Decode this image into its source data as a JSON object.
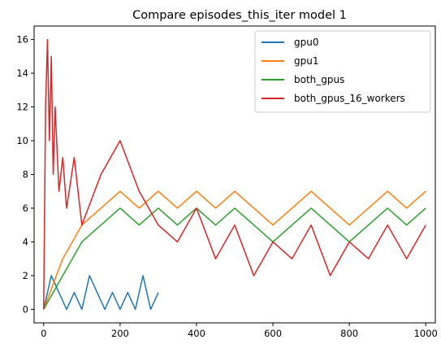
{
  "chart_data": {
    "type": "line",
    "title": "Compare episodes_this_iter model 1",
    "xlabel": "",
    "ylabel": "",
    "xlim": [
      -25,
      1025
    ],
    "ylim": [
      -0.8,
      16.8
    ],
    "xticks": [
      0,
      200,
      400,
      600,
      800,
      1000
    ],
    "yticks": [
      0,
      2,
      4,
      6,
      8,
      10,
      12,
      14,
      16
    ],
    "grid": false,
    "legend_placement": "top-right",
    "series": [
      {
        "name": "gpu0",
        "color": "#1f77b4",
        "x": [
          0,
          20,
          40,
          60,
          80,
          100,
          120,
          140,
          160,
          180,
          200,
          220,
          240,
          260,
          280,
          300
        ],
        "y": [
          0,
          2,
          1,
          0,
          1,
          0,
          2,
          1,
          0,
          1,
          0,
          1,
          0,
          2,
          0,
          1
        ]
      },
      {
        "name": "gpu1",
        "color": "#ff7f0e",
        "x": [
          0,
          50,
          100,
          150,
          200,
          250,
          300,
          350,
          400,
          450,
          500,
          550,
          600,
          650,
          700,
          750,
          800,
          850,
          900,
          950,
          1000
        ],
        "y": [
          0,
          3,
          5,
          6,
          7,
          6,
          7,
          6,
          7,
          6,
          7,
          6,
          5,
          6,
          7,
          6,
          5,
          6,
          7,
          6,
          7
        ]
      },
      {
        "name": "both_gpus",
        "color": "#2ca02c",
        "x": [
          0,
          50,
          100,
          150,
          200,
          250,
          300,
          350,
          400,
          450,
          500,
          550,
          600,
          650,
          700,
          750,
          800,
          850,
          900,
          950,
          1000
        ],
        "y": [
          0,
          2,
          4,
          5,
          6,
          5,
          6,
          5,
          6,
          5,
          6,
          5,
          4,
          5,
          6,
          5,
          4,
          5,
          6,
          5,
          6
        ]
      },
      {
        "name": "both_gpus_16_workers",
        "color": "#d62728",
        "x": [
          0,
          5,
          10,
          15,
          20,
          25,
          30,
          40,
          50,
          60,
          80,
          100,
          150,
          200,
          250,
          300,
          350,
          400,
          450,
          500,
          550,
          600,
          650,
          700,
          750,
          800,
          850,
          900,
          950,
          1000
        ],
        "y": [
          0,
          12,
          16,
          10,
          15,
          8,
          12,
          7,
          9,
          6,
          9,
          5,
          8,
          10,
          7,
          5,
          4,
          6,
          3,
          5,
          2,
          4,
          3,
          5,
          2,
          4,
          3,
          5,
          3,
          5
        ]
      }
    ]
  }
}
